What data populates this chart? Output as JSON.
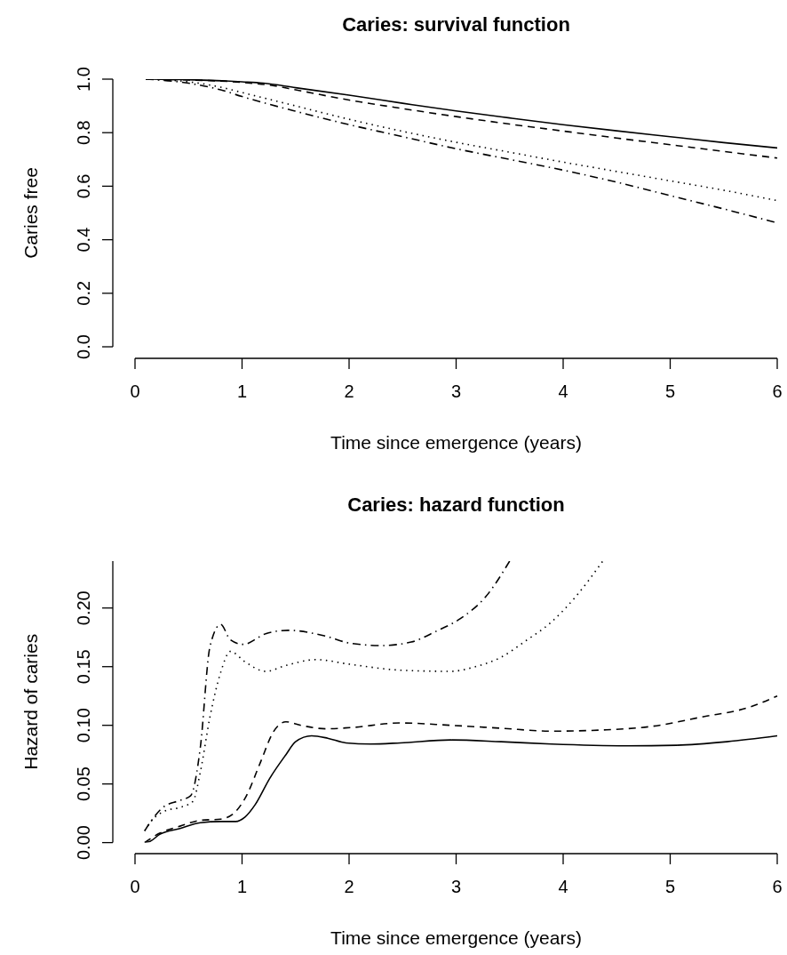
{
  "chart_data": [
    {
      "type": "line",
      "title": "Caries: survival function",
      "xlabel": "Time since emergence (years)",
      "ylabel": "Caries free",
      "xlim": [
        0,
        6
      ],
      "xticks": [
        0,
        1,
        2,
        3,
        4,
        5,
        6
      ],
      "ylim": [
        0,
        1
      ],
      "yticks": [
        {
          "value": 0,
          "label": "0.0"
        },
        0.2,
        0.4,
        0.6,
        0.8,
        {
          "value": 1,
          "label": "1.0"
        }
      ],
      "grid": false,
      "marker": "none",
      "series": [
        {
          "color": "#000000",
          "line_style": "solid",
          "x": [
            0.1,
            0.5,
            1,
            1.2,
            1.5,
            2,
            2.5,
            3,
            3.5,
            4,
            4.5,
            5,
            5.5,
            6
          ],
          "values": [
            1.0,
            0.998,
            0.99,
            0.985,
            0.968,
            0.94,
            0.91,
            0.881,
            0.855,
            0.83,
            0.807,
            0.785,
            0.763,
            0.743
          ]
        },
        {
          "color": "#000000",
          "line_style": "dashed",
          "x": [
            0.1,
            0.5,
            1,
            1.3,
            1.5,
            2,
            2.5,
            3,
            3.5,
            4,
            4.5,
            5,
            5.5,
            6
          ],
          "values": [
            1.0,
            0.997,
            0.988,
            0.975,
            0.96,
            0.922,
            0.89,
            0.86,
            0.832,
            0.806,
            0.78,
            0.755,
            0.73,
            0.705
          ]
        },
        {
          "color": "#000000",
          "line_style": "dotted",
          "x": [
            0.1,
            0.5,
            0.8,
            1,
            1.5,
            2,
            2.5,
            3,
            3.5,
            4,
            4.5,
            5,
            5.5,
            6
          ],
          "values": [
            1.0,
            0.99,
            0.97,
            0.95,
            0.9,
            0.85,
            0.805,
            0.764,
            0.727,
            0.69,
            0.655,
            0.62,
            0.585,
            0.546
          ]
        },
        {
          "color": "#000000",
          "line_style": "dashdot",
          "x": [
            0.1,
            0.5,
            0.8,
            1,
            1.5,
            2,
            2.5,
            3,
            3.5,
            4,
            4.5,
            5,
            5.5,
            6
          ],
          "values": [
            1.0,
            0.985,
            0.96,
            0.935,
            0.88,
            0.83,
            0.785,
            0.74,
            0.7,
            0.66,
            0.615,
            0.565,
            0.515,
            0.463
          ]
        }
      ]
    },
    {
      "type": "line",
      "title": "Caries: hazard function",
      "xlabel": "Time since emergence (years)",
      "ylabel": "Hazard of caries",
      "xlim": [
        0,
        6
      ],
      "xticks": [
        0,
        1,
        2,
        3,
        4,
        5,
        6
      ],
      "ylim": [
        0,
        0.24
      ],
      "yticks": [
        {
          "value": 0,
          "label": "0.00"
        },
        0.05,
        {
          "value": 0.1,
          "label": "0.10"
        },
        0.15,
        {
          "value": 0.2,
          "label": "0.20"
        }
      ],
      "grid": false,
      "marker": "none",
      "series": [
        {
          "color": "#000000",
          "line_style": "solid",
          "x": [
            0.09,
            0.14,
            0.23,
            0.42,
            0.61,
            0.8,
            0.94,
            1.03,
            1.12,
            1.26,
            1.41,
            1.5,
            1.65,
            1.8,
            1.97,
            2.2,
            2.48,
            2.95,
            3.42,
            3.89,
            4.59,
            5.06,
            5.53,
            6.0
          ],
          "values": [
            0,
            0.001,
            0.007,
            0.012,
            0.017,
            0.018,
            0.018,
            0.022,
            0.032,
            0.055,
            0.075,
            0.086,
            0.091,
            0.089,
            0.085,
            0.084,
            0.085,
            0.0875,
            0.086,
            0.084,
            0.0825,
            0.083,
            0.086,
            0.091
          ]
        },
        {
          "color": "#000000",
          "line_style": "dashed",
          "x": [
            0.09,
            0.23,
            0.42,
            0.61,
            0.8,
            0.91,
            1.03,
            1.17,
            1.29,
            1.41,
            1.55,
            1.78,
            2.01,
            2.48,
            2.95,
            3.42,
            3.89,
            4.36,
            4.82,
            5.29,
            5.76,
            6.0
          ],
          "values": [
            0,
            0.008,
            0.014,
            0.019,
            0.02,
            0.024,
            0.038,
            0.068,
            0.094,
            0.103,
            0.1,
            0.097,
            0.098,
            0.102,
            0.1,
            0.0975,
            0.095,
            0.096,
            0.099,
            0.107,
            0.116,
            0.125
          ]
        },
        {
          "color": "#000000",
          "line_style": "dotted",
          "x": [
            0.09,
            0.14,
            0.28,
            0.42,
            0.54,
            0.61,
            0.7,
            0.8,
            0.89,
            1.03,
            1.22,
            1.41,
            1.69,
            2.01,
            2.48,
            2.95,
            3.18,
            3.42,
            3.65,
            3.89,
            4.12,
            4.37
          ],
          "values": [
            0.01,
            0.017,
            0.027,
            0.03,
            0.035,
            0.06,
            0.107,
            0.145,
            0.163,
            0.154,
            0.146,
            0.151,
            0.156,
            0.152,
            0.147,
            0.146,
            0.15,
            0.158,
            0.172,
            0.188,
            0.21,
            0.24
          ]
        },
        {
          "color": "#000000",
          "line_style": "dashdot",
          "x": [
            0.09,
            0.14,
            0.26,
            0.42,
            0.52,
            0.61,
            0.7,
            0.8,
            0.89,
            1.01,
            1.22,
            1.43,
            1.78,
            2.01,
            2.3,
            2.58,
            2.81,
            3.04,
            3.28,
            3.5
          ],
          "values": [
            0.01,
            0.017,
            0.03,
            0.036,
            0.04,
            0.081,
            0.167,
            0.186,
            0.173,
            0.169,
            0.178,
            0.181,
            0.176,
            0.17,
            0.168,
            0.171,
            0.18,
            0.191,
            0.21,
            0.24
          ]
        }
      ]
    }
  ]
}
